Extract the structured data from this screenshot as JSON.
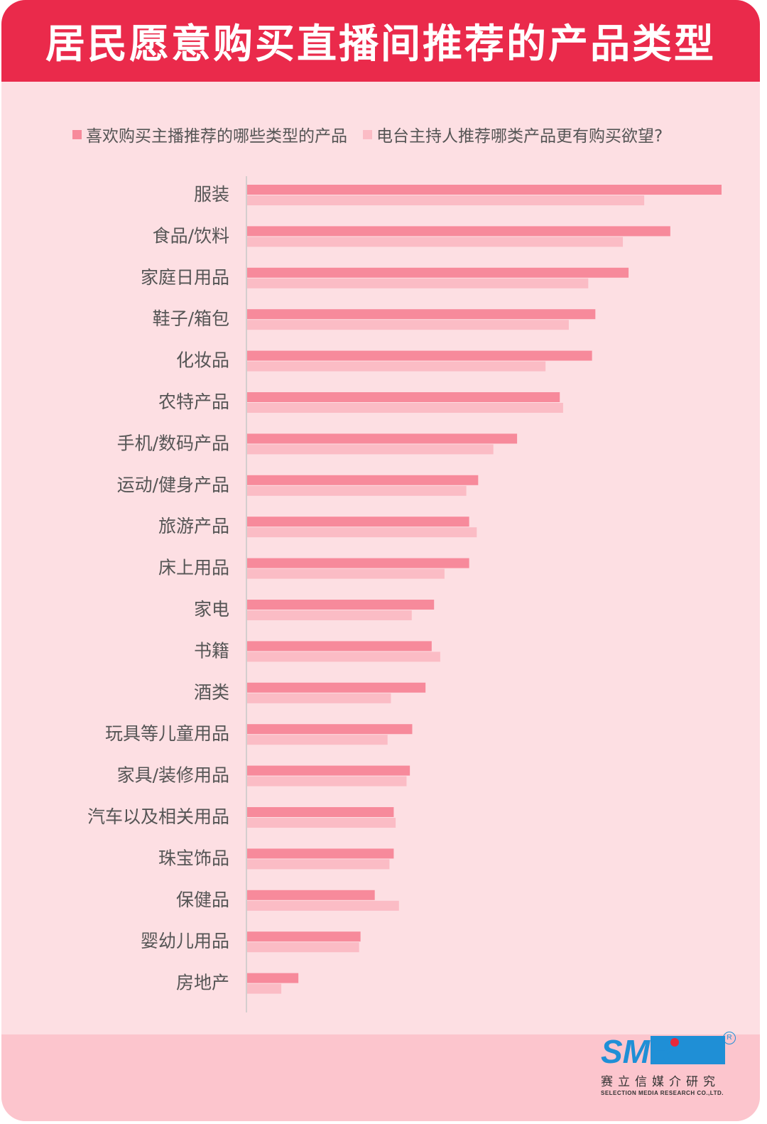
{
  "header": {
    "title": "居民愿意购买直播间推荐的产品类型"
  },
  "chart_data": {
    "type": "bar",
    "orientation": "horizontal",
    "title": "居民愿意购买直播间推荐的产品类型",
    "xlabel": "",
    "ylabel": "",
    "xlim": [
      0,
      100
    ],
    "grid": false,
    "legend_position": "top",
    "categories": [
      "服装",
      "食品/饮料",
      "家庭日用品",
      "鞋子/箱包",
      "化妆品",
      "农特产品",
      "手机/数码产品",
      "运动/健身产品",
      "旅游产品",
      "床上用品",
      "家电",
      "书籍",
      "酒类",
      "玩具等儿童用品",
      "家具/装修用品",
      "汽车以及相关用品",
      "珠宝饰品",
      "保健品",
      "婴幼儿用品",
      "房地产"
    ],
    "series": [
      {
        "name": "喜欢购买主播推荐的哪些类型的产品",
        "color": "#f78a9b",
        "values": [
          100,
          89.2,
          80.4,
          73.4,
          72.7,
          65.9,
          56.9,
          48.7,
          46.8,
          46.8,
          39.4,
          38.9,
          37.6,
          34.8,
          34.3,
          30.9,
          30.9,
          26.9,
          23.9,
          10.8
        ]
      },
      {
        "name": "电台主持人推荐哪类产品更有购买欲望?",
        "color": "#fbbcc5",
        "values": [
          83.7,
          79.2,
          71.9,
          67.8,
          62.9,
          66.6,
          51.9,
          46.2,
          48.4,
          41.6,
          34.7,
          40.7,
          30.3,
          29.6,
          33.6,
          31.3,
          30.0,
          32.0,
          23.6,
          7.2
        ]
      }
    ]
  },
  "logo": {
    "brand": "SMR",
    "cn_name": "赛立信媒介研究",
    "en_name": "SELECTION MEDIA RESEARCH CO.,LTD.",
    "reg_mark": "R",
    "brand_blue": "#1f8fd6",
    "brand_red": "#e8283a"
  }
}
